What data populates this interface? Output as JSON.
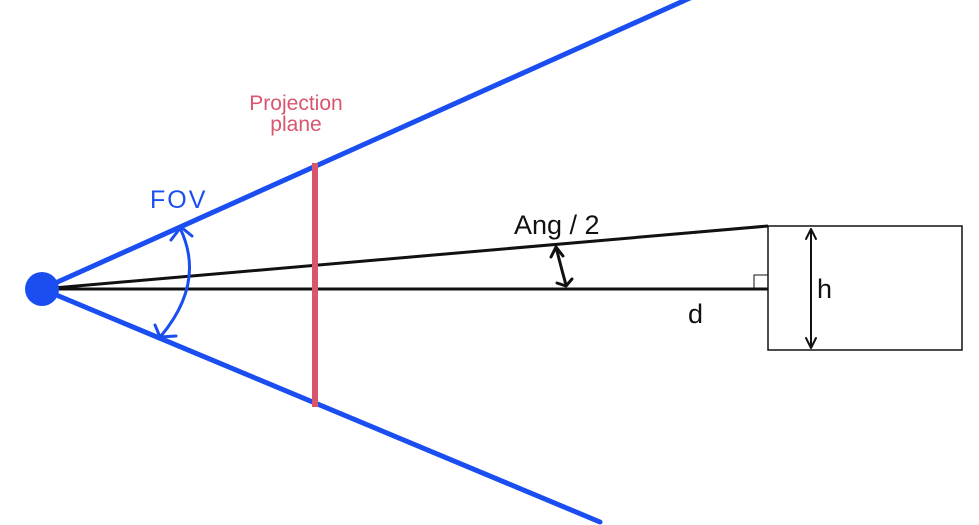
{
  "labels": {
    "projection_line1": "Projection",
    "projection_line2": "plane",
    "fov": "FOV",
    "half_angle": "Ang / 2",
    "distance": "d",
    "height": "h"
  },
  "colors": {
    "fov_rays": "#1a4ef0",
    "projection_plane": "#d9566e",
    "construction": "#111111",
    "background": "#ffffff"
  }
}
